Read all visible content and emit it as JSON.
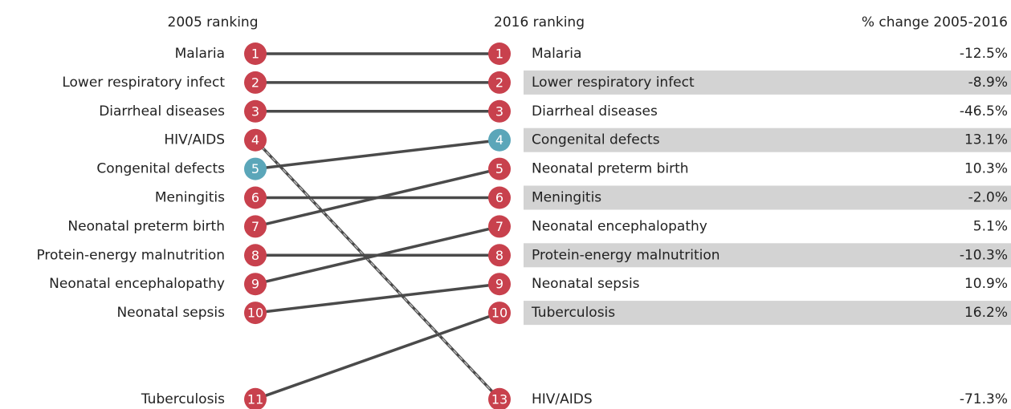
{
  "chart_data": {
    "type": "slope",
    "left_title": "2005 ranking",
    "right_title": "2016 ranking",
    "change_title": "% change 2005-2016",
    "left": {
      "names": [
        "Malaria",
        "Lower respiratory infect",
        "Diarrheal diseases",
        "HIV/AIDS",
        "Congenital defects",
        "Meningitis",
        "Neonatal preterm birth",
        "Protein-energy malnutrition",
        "Neonatal encephalopathy",
        "Neonatal sepsis",
        "Tuberculosis"
      ],
      "ranks": [
        1,
        2,
        3,
        4,
        5,
        6,
        7,
        8,
        9,
        10,
        11
      ],
      "colors": [
        "#c8414d",
        "#c8414d",
        "#c8414d",
        "#c8414d",
        "#5ba6b9",
        "#c8414d",
        "#c8414d",
        "#c8414d",
        "#c8414d",
        "#c8414d",
        "#c8414d"
      ]
    },
    "right": {
      "names": [
        "Malaria",
        "Lower respiratory infect",
        "Diarrheal diseases",
        "Congenital defects",
        "Neonatal preterm birth",
        "Meningitis",
        "Neonatal encephalopathy",
        "Protein-energy malnutrition",
        "Neonatal sepsis",
        "Tuberculosis",
        "HIV/AIDS"
      ],
      "ranks": [
        1,
        2,
        3,
        4,
        5,
        6,
        7,
        8,
        9,
        10,
        13
      ],
      "colors": [
        "#c8414d",
        "#c8414d",
        "#c8414d",
        "#5ba6b9",
        "#c8414d",
        "#c8414d",
        "#c8414d",
        "#c8414d",
        "#c8414d",
        "#c8414d",
        "#c8414d"
      ],
      "changes": [
        -12.5,
        -8.9,
        -46.5,
        13.1,
        10.3,
        -2.0,
        5.1,
        -10.3,
        10.9,
        16.2,
        -71.3
      ],
      "change_labels": [
        "-12.5%",
        "-8.9%",
        "-46.5%",
        "13.1%",
        "10.3%",
        "-2.0%",
        "5.1%",
        "-10.3%",
        "10.9%",
        "16.2%",
        "-71.3%"
      ]
    },
    "line_color": "#4a4a4a",
    "stripe_color": "#d3d3d3"
  }
}
